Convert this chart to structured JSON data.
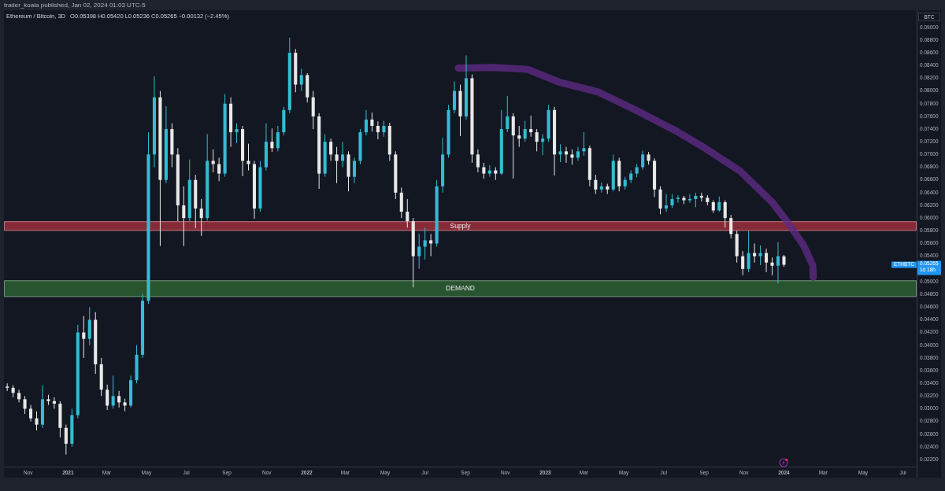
{
  "chart_data": {
    "type": "candlestick",
    "title": "Ethereum / Bitcoin, 3D",
    "subtitle": "O0.05398 H0.05420 L0.05236 C0.05265 −0.00132 (−2.45%)",
    "ylabel": "BTC",
    "colors": [
      "#e8e8e8",
      "#e8e8e8",
      "#e8e8e8",
      "#e8e8e8",
      "#e8e8e8",
      "#e8e8e8",
      "#33bcd4",
      "#e8e8e8",
      "#e8e8e8",
      "#e8e8e8",
      "#e8e8e8",
      "#33bcd4",
      "#33bcd4",
      "#e8e8e8",
      "#33bcd4",
      "#e8e8e8",
      "#e8e8e8",
      "#e8e8e8",
      "#33bcd4",
      "#e8e8e8",
      "#e8e8e8",
      "#33bcd4",
      "#33bcd4",
      "#33bcd4",
      "#33bcd4",
      "#33bcd4",
      "#e8e8e8",
      "#33bcd4",
      "#e8e8e8",
      "#e8e8e8",
      "#e8e8e8",
      "#33bcd4",
      "#e8e8e8",
      "#e8e8e8",
      "#33bcd4",
      "#e8e8e8",
      "#e8e8e8",
      "#33bcd4",
      "#e8e8e8",
      "#33bcd4",
      "#e8e8e8",
      "#e8e8e8",
      "#e8e8e8",
      "#33bcd4",
      "#33bcd4",
      "#e8e8e8",
      "#33bcd4",
      "#33bcd4",
      "#33bcd4",
      "#e8e8e8",
      "#33bcd4",
      "#e8e8e8",
      "#e8e8e8",
      "#e8e8e8",
      "#33bcd4",
      "#e8e8e8",
      "#e8e8e8",
      "#33bcd4",
      "#e8e8e8",
      "#33bcd4",
      "#33bcd4",
      "#33bcd4",
      "#e8e8e8",
      "#e8e8e8",
      "#33bcd4",
      "#e8e8e8",
      "#e8e8e8",
      "#e8e8e8",
      "#e8e8e8",
      "#e8e8e8",
      "#33bcd4",
      "#33bcd4",
      "#e8e8e8",
      "#33bcd4",
      "#33bcd4",
      "#33bcd4",
      "#33bcd4",
      "#e8e8e8",
      "#33bcd4",
      "#e8e8e8",
      "#e8e8e8",
      "#e8e8e8",
      "#33bcd4",
      "#e8e8e8",
      "#33bcd4",
      "#33bcd4",
      "#e8e8e8",
      "#e8e8e8",
      "#33bcd4",
      "#e8e8e8",
      "#e8e8e8",
      "#33bcd4",
      "#33bcd4",
      "#e8e8e8",
      "#33bcd4",
      "#e8e8e8",
      "#e8e8e8",
      "#33bcd4",
      "#33bcd4",
      "#e8e8e8",
      "#e8e8e8",
      "#33bcd4",
      "#e8e8e8",
      "#33bcd4",
      "#e8e8e8",
      "#33bcd4",
      "#33bcd4",
      "#33bcd4",
      "#33bcd4",
      "#e8e8e8",
      "#e8e8e8",
      "#e8e8e8",
      "#33bcd4",
      "#33bcd4",
      "#33bcd4",
      "#e8e8e8",
      "#33bcd4",
      "#33bcd4",
      "#e8e8e8",
      "#e8e8e8",
      "#e8e8e8",
      "#33bcd4",
      "#e8e8e8",
      "#e8e8e8",
      "#e8e8e8",
      "#e8e8e8",
      "#33bcd4",
      "#e8e8e8",
      "#33bcd4",
      "#e8e8e8",
      "#e8e8e8",
      "#33bcd4",
      "#e8e8e8"
    ],
    "x": [
      "2020-09-30",
      "2020-10-09",
      "2020-10-18",
      "2020-10-27",
      "2020-11-05",
      "2020-11-14",
      "2020-11-23",
      "2020-12-02",
      "2020-12-11",
      "2020-12-20",
      "2020-12-29",
      "2021-01-07",
      "2021-01-16",
      "2021-01-25",
      "2021-02-03",
      "2021-02-12",
      "2021-02-21",
      "2021-03-02",
      "2021-03-11",
      "2021-03-20",
      "2021-03-29",
      "2021-04-07",
      "2021-04-16",
      "2021-04-25",
      "2021-05-04",
      "2021-05-13",
      "2021-05-22",
      "2021-05-31",
      "2021-06-09",
      "2021-06-18",
      "2021-06-27",
      "2021-07-06",
      "2021-07-15",
      "2021-07-24",
      "2021-08-02",
      "2021-08-11",
      "2021-08-20",
      "2021-08-29",
      "2021-09-07",
      "2021-09-16",
      "2021-09-25",
      "2021-10-04",
      "2021-10-13",
      "2021-10-22",
      "2021-10-31",
      "2021-11-09",
      "2021-11-18",
      "2021-11-27",
      "2021-12-06",
      "2021-12-15",
      "2021-12-24",
      "2022-01-02",
      "2022-01-11",
      "2022-01-20",
      "2022-01-29",
      "2022-02-07",
      "2022-02-16",
      "2022-02-25",
      "2022-03-06",
      "2022-03-15",
      "2022-03-24",
      "2022-04-02",
      "2022-04-11",
      "2022-04-20",
      "2022-04-29",
      "2022-05-08",
      "2022-05-17",
      "2022-05-26",
      "2022-06-04",
      "2022-06-13",
      "2022-06-22",
      "2022-07-01",
      "2022-07-10",
      "2022-07-19",
      "2022-07-28",
      "2022-08-06",
      "2022-08-15",
      "2022-08-24",
      "2022-09-02",
      "2022-09-11",
      "2022-09-20",
      "2022-09-29",
      "2022-10-08",
      "2022-10-17",
      "2022-10-26",
      "2022-11-04",
      "2022-11-13",
      "2022-11-22",
      "2022-12-01",
      "2022-12-10",
      "2022-12-19",
      "2022-12-28",
      "2023-01-06",
      "2023-01-15",
      "2023-01-24",
      "2023-02-02",
      "2023-02-11",
      "2023-02-20",
      "2023-03-01",
      "2023-03-10",
      "2023-03-19",
      "2023-03-28",
      "2023-04-06",
      "2023-04-15",
      "2023-04-24",
      "2023-05-03",
      "2023-05-12",
      "2023-05-21",
      "2023-05-30",
      "2023-06-08",
      "2023-06-17",
      "2023-06-26",
      "2023-07-05",
      "2023-07-14",
      "2023-07-23",
      "2023-08-01",
      "2023-08-10",
      "2023-08-19",
      "2023-08-28",
      "2023-09-06",
      "2023-09-15",
      "2023-09-24",
      "2023-10-03",
      "2023-10-12",
      "2023-10-21",
      "2023-10-30",
      "2023-11-08",
      "2023-11-17",
      "2023-11-26",
      "2023-12-05",
      "2023-12-14",
      "2023-12-23",
      "2024-01-01"
    ],
    "ohlc": [
      [
        0.0335,
        0.034,
        0.0328,
        0.0333
      ],
      [
        0.0333,
        0.0337,
        0.0318,
        0.0325
      ],
      [
        0.0325,
        0.033,
        0.031,
        0.0315
      ],
      [
        0.0315,
        0.032,
        0.0292,
        0.03
      ],
      [
        0.03,
        0.0306,
        0.028,
        0.0285
      ],
      [
        0.0285,
        0.0296,
        0.0266,
        0.0275
      ],
      [
        0.0275,
        0.0337,
        0.027,
        0.0315
      ],
      [
        0.0315,
        0.0322,
        0.0306,
        0.0312
      ],
      [
        0.0312,
        0.0318,
        0.03,
        0.0308
      ],
      [
        0.0308,
        0.0312,
        0.0255,
        0.027
      ],
      [
        0.027,
        0.0275,
        0.0228,
        0.0245
      ],
      [
        0.0245,
        0.03,
        0.024,
        0.029
      ],
      [
        0.029,
        0.0432,
        0.0285,
        0.042
      ],
      [
        0.042,
        0.0446,
        0.038,
        0.041
      ],
      [
        0.041,
        0.046,
        0.04,
        0.044
      ],
      [
        0.044,
        0.0452,
        0.0355,
        0.037
      ],
      [
        0.037,
        0.038,
        0.032,
        0.033
      ],
      [
        0.033,
        0.0338,
        0.0298,
        0.0305
      ],
      [
        0.0305,
        0.0352,
        0.03,
        0.032
      ],
      [
        0.032,
        0.0328,
        0.0302,
        0.031
      ],
      [
        0.031,
        0.0316,
        0.0296,
        0.0305
      ],
      [
        0.0305,
        0.0352,
        0.0302,
        0.0345
      ],
      [
        0.0345,
        0.04,
        0.034,
        0.0385
      ],
      [
        0.0385,
        0.0481,
        0.038,
        0.047
      ],
      [
        0.047,
        0.0735,
        0.0465,
        0.07
      ],
      [
        0.07,
        0.0823,
        0.068,
        0.079
      ],
      [
        0.079,
        0.08,
        0.0556,
        0.066
      ],
      [
        0.066,
        0.0776,
        0.0655,
        0.074
      ],
      [
        0.074,
        0.0749,
        0.068,
        0.07
      ],
      [
        0.07,
        0.071,
        0.0595,
        0.062
      ],
      [
        0.062,
        0.065,
        0.0556,
        0.06
      ],
      [
        0.06,
        0.0692,
        0.0595,
        0.066
      ],
      [
        0.066,
        0.0668,
        0.0584,
        0.0615
      ],
      [
        0.0615,
        0.063,
        0.0572,
        0.06
      ],
      [
        0.06,
        0.0732,
        0.0596,
        0.069
      ],
      [
        0.069,
        0.0708,
        0.0672,
        0.0685
      ],
      [
        0.0685,
        0.0695,
        0.0658,
        0.067
      ],
      [
        0.067,
        0.0795,
        0.0665,
        0.078
      ],
      [
        0.078,
        0.079,
        0.0712,
        0.0735
      ],
      [
        0.0735,
        0.0749,
        0.0718,
        0.074
      ],
      [
        0.074,
        0.0745,
        0.0666,
        0.069
      ],
      [
        0.069,
        0.0717,
        0.0675,
        0.0685
      ],
      [
        0.0685,
        0.069,
        0.0599,
        0.0615
      ],
      [
        0.0615,
        0.069,
        0.061,
        0.068
      ],
      [
        0.068,
        0.0749,
        0.0675,
        0.072
      ],
      [
        0.072,
        0.0741,
        0.0704,
        0.071
      ],
      [
        0.071,
        0.0745,
        0.0705,
        0.0735
      ],
      [
        0.0735,
        0.0775,
        0.073,
        0.077
      ],
      [
        0.077,
        0.0884,
        0.0765,
        0.086
      ],
      [
        0.086,
        0.0866,
        0.0798,
        0.081
      ],
      [
        0.081,
        0.0835,
        0.08,
        0.0825
      ],
      [
        0.0825,
        0.0828,
        0.0782,
        0.079
      ],
      [
        0.079,
        0.08,
        0.074,
        0.076
      ],
      [
        0.076,
        0.0765,
        0.0646,
        0.067
      ],
      [
        0.067,
        0.0732,
        0.0665,
        0.072
      ],
      [
        0.072,
        0.0725,
        0.069,
        0.07
      ],
      [
        0.07,
        0.0712,
        0.0655,
        0.069
      ],
      [
        0.069,
        0.072,
        0.068,
        0.07
      ],
      [
        0.07,
        0.0705,
        0.0642,
        0.0665
      ],
      [
        0.0665,
        0.0695,
        0.0655,
        0.069
      ],
      [
        0.069,
        0.074,
        0.0685,
        0.0735
      ],
      [
        0.0735,
        0.077,
        0.073,
        0.0755
      ],
      [
        0.0755,
        0.0766,
        0.0736,
        0.0745
      ],
      [
        0.0745,
        0.0752,
        0.0724,
        0.0735
      ],
      [
        0.0735,
        0.0753,
        0.0728,
        0.0745
      ],
      [
        0.0745,
        0.075,
        0.069,
        0.07
      ],
      [
        0.07,
        0.0705,
        0.063,
        0.064
      ],
      [
        0.064,
        0.0648,
        0.06,
        0.061
      ],
      [
        0.061,
        0.063,
        0.0585,
        0.0595
      ],
      [
        0.0595,
        0.06,
        0.0491,
        0.054
      ],
      [
        0.054,
        0.0575,
        0.052,
        0.0555
      ],
      [
        0.0555,
        0.0585,
        0.0535,
        0.0565
      ],
      [
        0.0565,
        0.0575,
        0.054,
        0.056
      ],
      [
        0.056,
        0.066,
        0.0555,
        0.065
      ],
      [
        0.065,
        0.0726,
        0.064,
        0.07
      ],
      [
        0.07,
        0.0778,
        0.0695,
        0.077
      ],
      [
        0.077,
        0.0815,
        0.0765,
        0.08
      ],
      [
        0.08,
        0.081,
        0.0729,
        0.076
      ],
      [
        0.076,
        0.0856,
        0.0755,
        0.082
      ],
      [
        0.082,
        0.0826,
        0.0687,
        0.07
      ],
      [
        0.07,
        0.0708,
        0.0672,
        0.068
      ],
      [
        0.068,
        0.0687,
        0.0662,
        0.067
      ],
      [
        0.067,
        0.0683,
        0.0665,
        0.0675
      ],
      [
        0.0675,
        0.068,
        0.066,
        0.067
      ],
      [
        0.067,
        0.077,
        0.0668,
        0.074
      ],
      [
        0.074,
        0.0792,
        0.0735,
        0.076
      ],
      [
        0.076,
        0.0765,
        0.0662,
        0.073
      ],
      [
        0.073,
        0.0745,
        0.0712,
        0.0725
      ],
      [
        0.0725,
        0.0753,
        0.072,
        0.074
      ],
      [
        0.074,
        0.0761,
        0.0728,
        0.0735
      ],
      [
        0.0735,
        0.074,
        0.0705,
        0.072
      ],
      [
        0.072,
        0.0732,
        0.0699,
        0.0725
      ],
      [
        0.0725,
        0.0778,
        0.072,
        0.077
      ],
      [
        0.077,
        0.0775,
        0.0667,
        0.07
      ],
      [
        0.07,
        0.0716,
        0.0688,
        0.0705
      ],
      [
        0.0705,
        0.0712,
        0.0687,
        0.07
      ],
      [
        0.07,
        0.0708,
        0.0684,
        0.0695
      ],
      [
        0.0695,
        0.0712,
        0.069,
        0.0705
      ],
      [
        0.0705,
        0.0735,
        0.0698,
        0.071
      ],
      [
        0.071,
        0.0714,
        0.065,
        0.066
      ],
      [
        0.066,
        0.0668,
        0.0638,
        0.0645
      ],
      [
        0.0645,
        0.0656,
        0.064,
        0.065
      ],
      [
        0.065,
        0.0654,
        0.0638,
        0.0645
      ],
      [
        0.0645,
        0.07,
        0.0642,
        0.069
      ],
      [
        0.069,
        0.0695,
        0.0642,
        0.065
      ],
      [
        0.065,
        0.0665,
        0.0645,
        0.066
      ],
      [
        0.066,
        0.0675,
        0.0655,
        0.067
      ],
      [
        0.067,
        0.0685,
        0.0664,
        0.068
      ],
      [
        0.068,
        0.0706,
        0.0676,
        0.07
      ],
      [
        0.07,
        0.0704,
        0.0684,
        0.069
      ],
      [
        0.069,
        0.0694,
        0.0633,
        0.0645
      ],
      [
        0.0645,
        0.065,
        0.0606,
        0.0615
      ],
      [
        0.0615,
        0.0638,
        0.061,
        0.062
      ],
      [
        0.062,
        0.0638,
        0.0616,
        0.063
      ],
      [
        0.063,
        0.0636,
        0.0624,
        0.0632
      ],
      [
        0.0632,
        0.0635,
        0.0622,
        0.0628
      ],
      [
        0.0628,
        0.0638,
        0.0624,
        0.063
      ],
      [
        0.063,
        0.064,
        0.0617,
        0.0635
      ],
      [
        0.0635,
        0.064,
        0.0626,
        0.0632
      ],
      [
        0.0632,
        0.0636,
        0.062,
        0.0625
      ],
      [
        0.0625,
        0.0628,
        0.0608,
        0.0612
      ],
      [
        0.0612,
        0.0634,
        0.061,
        0.0625
      ],
      [
        0.0625,
        0.0628,
        0.0585,
        0.06
      ],
      [
        0.06,
        0.0605,
        0.0568,
        0.0575
      ],
      [
        0.0575,
        0.058,
        0.053,
        0.054
      ],
      [
        0.054,
        0.0548,
        0.051,
        0.052
      ],
      [
        0.052,
        0.058,
        0.0515,
        0.0545
      ],
      [
        0.0545,
        0.056,
        0.053,
        0.054
      ],
      [
        0.054,
        0.0557,
        0.0526,
        0.0545
      ],
      [
        0.0545,
        0.0552,
        0.0515,
        0.053
      ],
      [
        0.053,
        0.0538,
        0.051,
        0.0525
      ],
      [
        0.0525,
        0.0562,
        0.0497,
        0.054
      ],
      [
        0.05398,
        0.0542,
        0.05236,
        0.05265
      ]
    ],
    "series": [
      {
        "type": "line",
        "color": "#5e2a85",
        "x": [
          "2022-08-21",
          "2022-10-14",
          "2022-12-05",
          "2023-01-22",
          "2023-03-24",
          "2023-05-23",
          "2023-07-22",
          "2023-08-27",
          "2023-10-26",
          "2023-12-14",
          "2024-01-07",
          "2024-01-31",
          "2024-02-14",
          "2024-02-15"
        ],
        "values": [
          0.0836,
          0.0837,
          0.0834,
          0.0814,
          0.0798,
          0.0768,
          0.0736,
          0.0714,
          0.0674,
          0.0625,
          0.0593,
          0.0557,
          0.0526,
          0.0507
        ]
      }
    ],
    "bands": [
      {
        "axis": "y",
        "from": 0.058,
        "to": 0.0595,
        "label": "Supply",
        "color": "#872a37"
      },
      {
        "axis": "y",
        "from": 0.0476,
        "to": 0.0502,
        "label": "DEMAND",
        "color": "#285430"
      }
    ],
    "annotations": [
      "trader_koala published, Jan 02, 2024 01:03 UTC-5",
      "ETHBTC",
      "0.05265",
      "1d 18h"
    ],
    "xlim": [
      "2020-09-25",
      "2024-07-22"
    ],
    "xticks": [
      {
        "value": "2020-11",
        "label": "Nov"
      },
      "2021",
      {
        "value": "2021-03",
        "label": "Mar"
      },
      {
        "value": "2021-05",
        "label": "May"
      },
      {
        "value": "2021-07",
        "label": "Jul"
      },
      {
        "value": "2021-09",
        "label": "Sep"
      },
      {
        "value": "2021-11",
        "label": "Nov"
      },
      "2022",
      {
        "value": "2022-03",
        "label": "Mar"
      },
      {
        "value": "2022-05",
        "label": "May"
      },
      {
        "value": "2022-07",
        "label": "Jul"
      },
      {
        "value": "2022-09",
        "label": "Sep"
      },
      {
        "value": "2022-11",
        "label": "Nov"
      },
      "2023",
      {
        "value": "2023-03",
        "label": "Mar"
      },
      {
        "value": "2023-05",
        "label": "May"
      },
      {
        "value": "2023-07",
        "label": "Jul"
      },
      {
        "value": "2023-09",
        "label": "Sep"
      },
      {
        "value": "2023-11",
        "label": "Nov"
      },
      "2024",
      {
        "value": "2024-03",
        "label": "Mar"
      },
      {
        "value": "2024-05",
        "label": "May"
      },
      {
        "value": "2024-07",
        "label": "Jul"
      }
    ],
    "ylim": [
      0.0209,
      0.0927
    ],
    "yticks": [
      {
        "value": 0.022,
        "label": "0.02200"
      },
      {
        "value": 0.024,
        "label": "0.02400"
      },
      {
        "value": 0.026,
        "label": "0.02600"
      },
      {
        "value": 0.028,
        "label": "0.02800"
      },
      {
        "value": 0.03,
        "label": "0.03000"
      },
      {
        "value": 0.032,
        "label": "0.03200"
      },
      {
        "value": 0.034,
        "label": "0.03400"
      },
      {
        "value": 0.036,
        "label": "0.03600"
      },
      {
        "value": 0.038,
        "label": "0.03800"
      },
      {
        "value": 0.04,
        "label": "0.04000"
      },
      {
        "value": 0.042,
        "label": "0.04200"
      },
      {
        "value": 0.044,
        "label": "0.04400"
      },
      {
        "value": 0.046,
        "label": "0.04600"
      },
      {
        "value": 0.048,
        "label": "0.04800"
      },
      {
        "value": 0.05,
        "label": "0.05000"
      },
      {
        "value": 0.054,
        "label": "0.05400"
      },
      {
        "value": 0.056,
        "label": "0.05600"
      },
      {
        "value": 0.058,
        "label": "0.05800"
      },
      {
        "value": 0.06,
        "label": "0.06000"
      },
      {
        "value": 0.062,
        "label": "0.06200"
      },
      {
        "value": 0.064,
        "label": "0.06400"
      },
      {
        "value": 0.066,
        "label": "0.06600"
      },
      {
        "value": 0.068,
        "label": "0.06800"
      },
      {
        "value": 0.07,
        "label": "0.07000"
      },
      {
        "value": 0.072,
        "label": "0.07200"
      },
      {
        "value": 0.074,
        "label": "0.07400"
      },
      {
        "value": 0.076,
        "label": "0.07600"
      },
      {
        "value": 0.078,
        "label": "0.07800"
      },
      {
        "value": 0.08,
        "label": "0.08000"
      },
      {
        "value": 0.082,
        "label": "0.08200"
      },
      {
        "value": 0.084,
        "label": "0.08400"
      },
      {
        "value": 0.086,
        "label": "0.08600"
      },
      {
        "value": 0.088,
        "label": "0.08800"
      },
      {
        "value": 0.09,
        "label": "0.09000"
      }
    ]
  }
}
